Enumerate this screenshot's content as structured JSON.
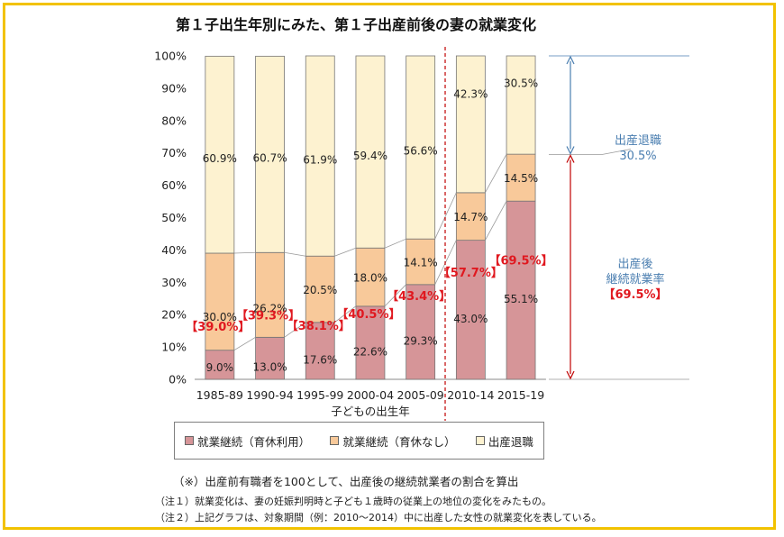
{
  "chart_data": {
    "type": "bar",
    "stacked": true,
    "title": "第１子出生年別にみた、第１子出産前後の妻の就業変化",
    "xlabel": "子どもの出生年",
    "ylabel": "",
    "ylim": [
      0,
      100
    ],
    "y_ticks": [
      "0%",
      "10%",
      "20%",
      "30%",
      "40%",
      "50%",
      "60%",
      "70%",
      "80%",
      "90%",
      "100%"
    ],
    "categories": [
      "1985-89",
      "1990-94",
      "1995-99",
      "2000-04",
      "2005-09",
      "2010-14",
      "2015-19"
    ],
    "series": [
      {
        "name": "就業継続（育休利用）",
        "color": "#d69598",
        "values": [
          9.0,
          13.0,
          17.6,
          22.6,
          29.3,
          43.0,
          55.1
        ],
        "labels": [
          "9.0%",
          "13.0%",
          "17.6%",
          "22.6%",
          "29.3%",
          "43.0%",
          "55.1%"
        ]
      },
      {
        "name": "就業継続（育休なし）",
        "color": "#f8c99a",
        "values": [
          30.0,
          26.2,
          20.5,
          18.0,
          14.1,
          14.7,
          14.5
        ],
        "labels": [
          "30.0%",
          "26.2%",
          "20.5%",
          "18.0%",
          "14.1%",
          "14.7%",
          "14.5%"
        ]
      },
      {
        "name": "出産退職",
        "color": "#fdf2d0",
        "values": [
          60.9,
          60.7,
          61.9,
          59.4,
          56.6,
          42.3,
          30.5
        ],
        "labels": [
          "60.9%",
          "60.7%",
          "61.9%",
          "59.4%",
          "56.6%",
          "42.3%",
          "30.5%"
        ]
      }
    ],
    "continuation_totals": [
      "【39.0%】",
      "【39.3%】",
      "【38.1%】",
      "【40.5%】",
      "【43.4%】",
      "【57.7%】",
      "【69.5%】"
    ],
    "annotations": {
      "resign_label": "出産退職",
      "resign_value": "30.5%",
      "continue_label_1": "出産後",
      "continue_label_2": "継続就業率",
      "continue_value": "【69.5%】"
    }
  },
  "legend": [
    "就業継続（育休利用）",
    "就業継続（育休なし）",
    "出産退職"
  ],
  "footnotes": {
    "main": "（※）出産前有職者を100として、出産後の継続就業者の割合を算出",
    "note1": "（注１）就業変化は、妻の妊娠判明時と子ども１歳時の従業上の地位の変化をみたもの。",
    "note2": "（注２）上記グラフは、対象期間（例：2010～2014）中に出産した女性の就業変化を表している。"
  },
  "colors": {
    "frame": "#f2c200",
    "annotation_blue": "#4a7eb0",
    "highlight_red": "#e0181f",
    "divider_red": "#c00000"
  }
}
